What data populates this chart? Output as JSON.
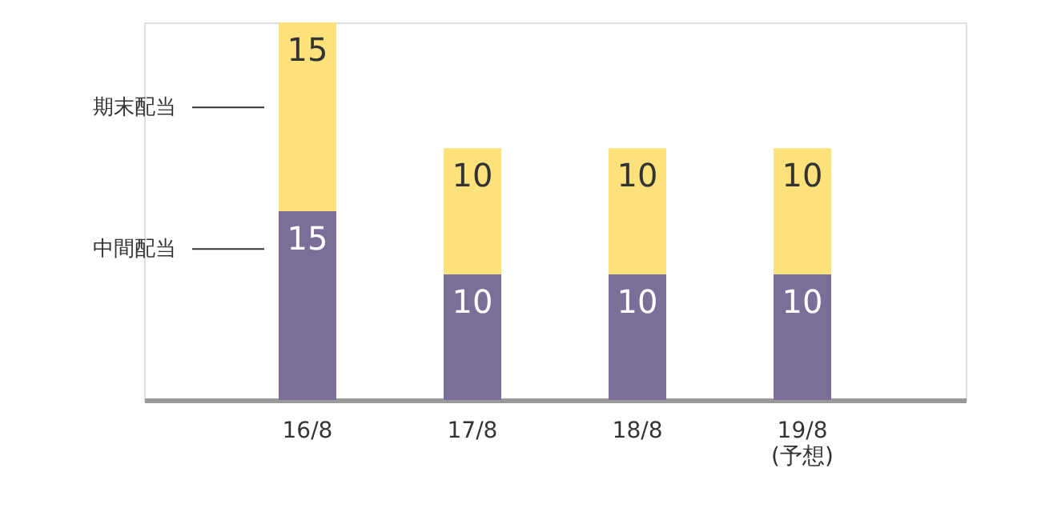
{
  "chart_data": {
    "type": "bar",
    "stacked": true,
    "data_labels": true,
    "legend": false,
    "tick_labels": "x",
    "grid": false,
    "categories": [
      "16/8",
      "17/8",
      "18/8",
      "19/8\n(予想)"
    ],
    "series": [
      {
        "name": "中間配当",
        "color": "#7b6e99",
        "values": [
          15,
          10,
          10,
          10
        ]
      },
      {
        "name": "期末配当",
        "color": "#fde27c",
        "values": [
          15,
          10,
          10,
          10
        ]
      }
    ]
  }
}
